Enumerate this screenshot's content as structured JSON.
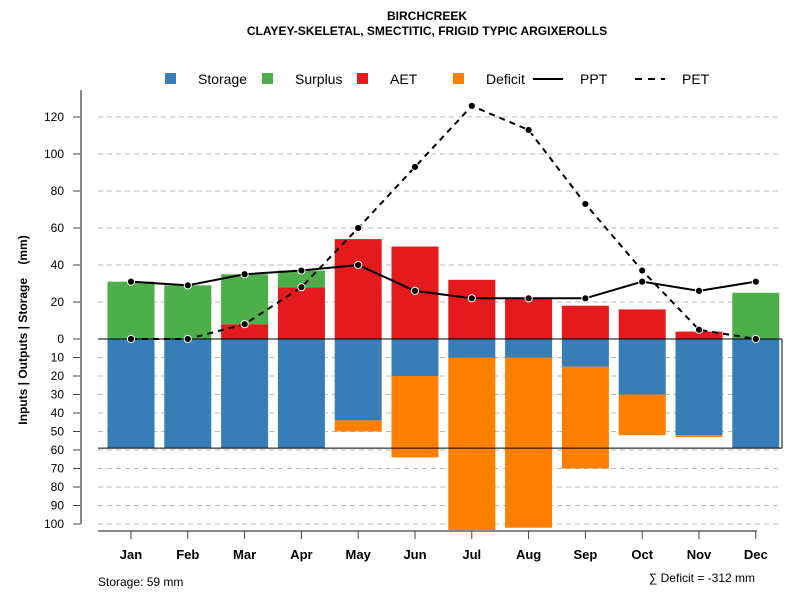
{
  "chart_data": {
    "type": "bar",
    "title": "BIRCHCREEK",
    "subtitle": "CLAYEY-SKELETAL, SMECTITIC, FRIGID TYPIC ARGIXEROLLS",
    "ylabel": "Inputs | Outputs | Storage    (mm)",
    "categories": [
      "Jan",
      "Feb",
      "Mar",
      "Apr",
      "May",
      "Jun",
      "Jul",
      "Aug",
      "Sep",
      "Oct",
      "Nov",
      "Dec"
    ],
    "yticks_up": [
      "0",
      "20",
      "40",
      "60",
      "80",
      "100",
      "120"
    ],
    "yticks_down": [
      "10",
      "20",
      "30",
      "40",
      "50",
      "60",
      "70",
      "80",
      "90",
      "100"
    ],
    "ylim": [
      -100,
      130
    ],
    "grid": true,
    "legend_placement": "top",
    "legend": [
      {
        "label": "Storage",
        "kind": "box",
        "color": "#377EB8"
      },
      {
        "label": "Surplus",
        "kind": "box",
        "color": "#4DAF4A"
      },
      {
        "label": "AET",
        "kind": "box",
        "color": "#E41A1C"
      },
      {
        "label": "Deficit",
        "kind": "box",
        "color": "#FF7F00"
      },
      {
        "label": "PPT",
        "kind": "solid",
        "color": "#000000"
      },
      {
        "label": "PET",
        "kind": "dashed",
        "color": "#000000"
      }
    ],
    "series": [
      {
        "name": "AET",
        "values": [
          0,
          0,
          8,
          28,
          54,
          50,
          32,
          22,
          18,
          16,
          4,
          0
        ]
      },
      {
        "name": "Surplus",
        "values": [
          31,
          29,
          27,
          9,
          0,
          0,
          0,
          0,
          0,
          0,
          0,
          25
        ]
      },
      {
        "name": "Storage",
        "values": [
          59,
          59,
          59,
          59,
          44,
          20,
          10,
          10,
          15,
          30,
          52,
          59
        ]
      },
      {
        "name": "Deficit",
        "values": [
          0,
          0,
          0,
          0,
          6,
          44,
          94,
          92,
          55,
          22,
          1,
          0
        ]
      },
      {
        "name": "PPT",
        "values": [
          31,
          29,
          35,
          37,
          40,
          26,
          22,
          22,
          22,
          31,
          26,
          31
        ]
      },
      {
        "name": "PET",
        "values": [
          0,
          0,
          8,
          28,
          60,
          93,
          126,
          113,
          73,
          37,
          5,
          0
        ]
      }
    ],
    "storage_capacity": 59,
    "annotation_left": "Storage: 59 mm",
    "annotation_right": "∑ Deficit = -312 mm"
  }
}
